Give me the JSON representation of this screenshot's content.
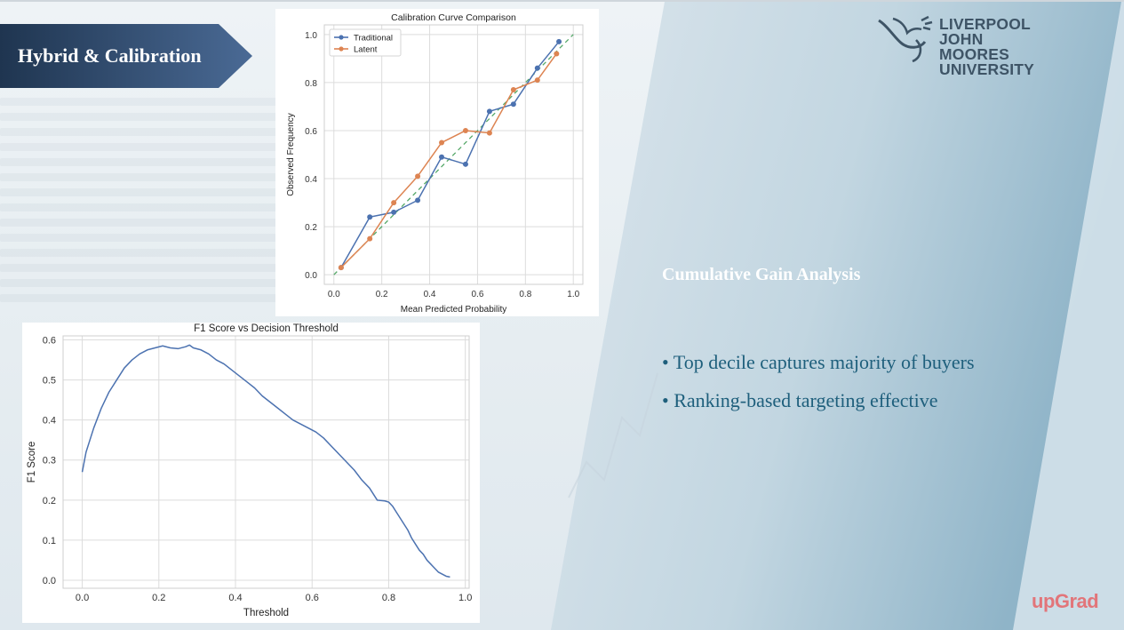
{
  "slide": {
    "title": "Hybrid & Calibration",
    "logo": {
      "line1": "LIVERPOOL",
      "line2": "JOHN MOORES",
      "line3": "UNIVERSITY"
    },
    "section_heading": "Cumulative Gain Analysis",
    "bullets": [
      "• Top decile captures majority of buyers",
      "• Ranking-based targeting effective"
    ],
    "brand_mark": "upGrad"
  },
  "colors": {
    "banner_dark": "#1f3550",
    "banner_light": "#4a6a95",
    "bullet_text": "#1e5f7c",
    "traditional": "#4c72b0",
    "latent": "#dd8452",
    "diagonal": "#55a868",
    "f1_line": "#4c72b0",
    "brand": "#e2757a"
  },
  "chart_data": [
    {
      "type": "line",
      "title": "Calibration Curve Comparison",
      "xlabel": "Mean Predicted Probability",
      "ylabel": "Observed Frequency",
      "xlim": [
        -0.04,
        1.04
      ],
      "ylim": [
        -0.04,
        1.04
      ],
      "xticks": [
        "0.0",
        "0.2",
        "0.4",
        "0.6",
        "0.8",
        "1.0"
      ],
      "yticks": [
        "0.0",
        "0.2",
        "0.4",
        "0.6",
        "0.8",
        "1.0"
      ],
      "grid": true,
      "legend": "top-left",
      "diagonal": {
        "x": [
          0,
          1
        ],
        "y": [
          0,
          1
        ],
        "style": "dashed"
      },
      "series": [
        {
          "name": "Traditional",
          "x": [
            0.03,
            0.15,
            0.25,
            0.35,
            0.45,
            0.55,
            0.65,
            0.75,
            0.85,
            0.94
          ],
          "y": [
            0.03,
            0.24,
            0.26,
            0.31,
            0.49,
            0.46,
            0.68,
            0.71,
            0.86,
            0.97
          ]
        },
        {
          "name": "Latent",
          "x": [
            0.03,
            0.15,
            0.25,
            0.35,
            0.45,
            0.55,
            0.65,
            0.75,
            0.85,
            0.93
          ],
          "y": [
            0.03,
            0.15,
            0.3,
            0.41,
            0.55,
            0.6,
            0.59,
            0.77,
            0.81,
            0.92
          ]
        }
      ]
    },
    {
      "type": "line",
      "title": "F1 Score vs Decision Threshold",
      "xlabel": "Threshold",
      "ylabel": "F1 Score",
      "xlim": [
        -0.05,
        1.01
      ],
      "ylim": [
        -0.02,
        0.61
      ],
      "xticks": [
        "0.0",
        "0.2",
        "0.4",
        "0.6",
        "0.8",
        "1.0"
      ],
      "yticks": [
        "0.0",
        "0.1",
        "0.2",
        "0.3",
        "0.4",
        "0.5",
        "0.6"
      ],
      "grid": true,
      "series": [
        {
          "name": "",
          "x": [
            0.0,
            0.01,
            0.02,
            0.03,
            0.05,
            0.07,
            0.09,
            0.11,
            0.13,
            0.15,
            0.17,
            0.19,
            0.21,
            0.23,
            0.25,
            0.27,
            0.28,
            0.29,
            0.31,
            0.33,
            0.35,
            0.37,
            0.39,
            0.41,
            0.43,
            0.45,
            0.47,
            0.49,
            0.51,
            0.53,
            0.55,
            0.57,
            0.59,
            0.61,
            0.63,
            0.65,
            0.67,
            0.69,
            0.71,
            0.73,
            0.75,
            0.77,
            0.79,
            0.8,
            0.81,
            0.82,
            0.83,
            0.84,
            0.85,
            0.86,
            0.87,
            0.88,
            0.89,
            0.9,
            0.91,
            0.92,
            0.93,
            0.94,
            0.95,
            0.96
          ],
          "y": [
            0.27,
            0.32,
            0.35,
            0.38,
            0.43,
            0.47,
            0.5,
            0.53,
            0.55,
            0.565,
            0.575,
            0.58,
            0.585,
            0.58,
            0.578,
            0.583,
            0.587,
            0.58,
            0.575,
            0.565,
            0.55,
            0.54,
            0.525,
            0.51,
            0.495,
            0.48,
            0.46,
            0.445,
            0.43,
            0.415,
            0.4,
            0.39,
            0.38,
            0.37,
            0.355,
            0.335,
            0.315,
            0.295,
            0.275,
            0.25,
            0.23,
            0.2,
            0.198,
            0.195,
            0.185,
            0.17,
            0.155,
            0.14,
            0.125,
            0.105,
            0.09,
            0.075,
            0.065,
            0.05,
            0.04,
            0.03,
            0.02,
            0.015,
            0.01,
            0.008
          ]
        }
      ]
    }
  ]
}
